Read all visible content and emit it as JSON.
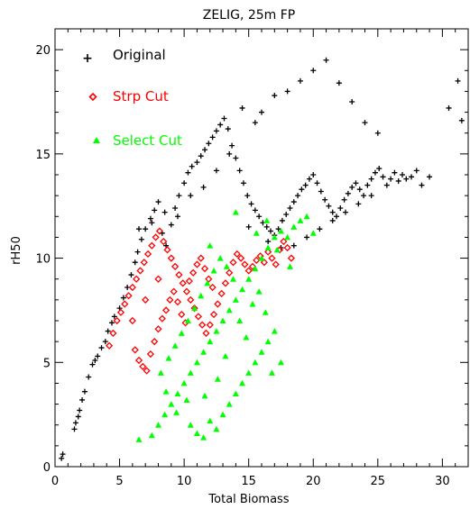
{
  "chart_data": {
    "type": "scatter",
    "title": "ZELIG, 25m FP",
    "xlabel": "Total Biomass",
    "ylabel": "rH50",
    "xlim": [
      0,
      32
    ],
    "ylim": [
      0,
      21
    ],
    "xticks": [
      0,
      5,
      10,
      15,
      20,
      25,
      30
    ],
    "yticks": [
      0,
      5,
      10,
      15,
      20
    ],
    "grid": false,
    "legend_position": "top-left",
    "series": [
      {
        "name": "Original",
        "marker": "plus",
        "color": "#000000",
        "points": [
          [
            0.5,
            0.4
          ],
          [
            0.6,
            0.6
          ],
          [
            1.5,
            1.8
          ],
          [
            1.6,
            2.1
          ],
          [
            1.8,
            2.4
          ],
          [
            1.9,
            2.7
          ],
          [
            2.1,
            3.2
          ],
          [
            2.3,
            3.6
          ],
          [
            2.6,
            4.3
          ],
          [
            2.9,
            4.9
          ],
          [
            3.1,
            5.1
          ],
          [
            3.3,
            5.3
          ],
          [
            3.6,
            5.7
          ],
          [
            3.9,
            6.0
          ],
          [
            4.1,
            6.5
          ],
          [
            4.4,
            6.9
          ],
          [
            4.6,
            7.2
          ],
          [
            5.0,
            7.6
          ],
          [
            5.3,
            8.1
          ],
          [
            5.6,
            8.6
          ],
          [
            5.9,
            9.2
          ],
          [
            6.2,
            9.8
          ],
          [
            6.4,
            10.3
          ],
          [
            6.7,
            10.9
          ],
          [
            7.0,
            11.4
          ],
          [
            7.4,
            11.9
          ],
          [
            7.7,
            12.3
          ],
          [
            8.0,
            12.7
          ],
          [
            8.3,
            11.2
          ],
          [
            8.6,
            10.6
          ],
          [
            9.0,
            11.6
          ],
          [
            9.3,
            12.4
          ],
          [
            9.6,
            13.0
          ],
          [
            10.0,
            13.6
          ],
          [
            10.3,
            14.1
          ],
          [
            10.6,
            14.4
          ],
          [
            11.0,
            14.6
          ],
          [
            11.3,
            14.9
          ],
          [
            11.6,
            15.2
          ],
          [
            11.9,
            15.5
          ],
          [
            12.2,
            15.8
          ],
          [
            12.5,
            16.1
          ],
          [
            12.8,
            16.4
          ],
          [
            13.1,
            16.7
          ],
          [
            13.4,
            16.2
          ],
          [
            13.7,
            15.4
          ],
          [
            14.0,
            14.8
          ],
          [
            14.3,
            14.2
          ],
          [
            14.6,
            13.6
          ],
          [
            14.9,
            13.0
          ],
          [
            15.2,
            12.6
          ],
          [
            15.5,
            12.3
          ],
          [
            15.8,
            12.0
          ],
          [
            16.1,
            11.7
          ],
          [
            16.4,
            11.5
          ],
          [
            16.7,
            11.3
          ],
          [
            17.0,
            11.1
          ],
          [
            17.3,
            11.4
          ],
          [
            17.6,
            11.8
          ],
          [
            17.9,
            12.1
          ],
          [
            18.2,
            12.4
          ],
          [
            18.5,
            12.7
          ],
          [
            18.8,
            13.0
          ],
          [
            19.1,
            13.3
          ],
          [
            19.4,
            13.5
          ],
          [
            19.7,
            13.8
          ],
          [
            20.0,
            14.0
          ],
          [
            20.3,
            13.6
          ],
          [
            20.6,
            13.2
          ],
          [
            20.9,
            12.8
          ],
          [
            21.2,
            12.5
          ],
          [
            21.5,
            12.2
          ],
          [
            21.8,
            12.0
          ],
          [
            22.1,
            12.4
          ],
          [
            22.4,
            12.8
          ],
          [
            22.7,
            13.1
          ],
          [
            23.0,
            13.4
          ],
          [
            23.3,
            13.6
          ],
          [
            23.6,
            13.3
          ],
          [
            23.9,
            13.0
          ],
          [
            24.2,
            13.5
          ],
          [
            24.5,
            13.8
          ],
          [
            24.8,
            14.1
          ],
          [
            25.1,
            14.3
          ],
          [
            25.4,
            13.9
          ],
          [
            25.7,
            13.5
          ],
          [
            26.0,
            13.8
          ],
          [
            26.3,
            14.1
          ],
          [
            26.6,
            13.7
          ],
          [
            26.9,
            14.0
          ],
          [
            27.2,
            13.8
          ],
          [
            27.6,
            13.9
          ],
          [
            28.0,
            14.2
          ],
          [
            28.4,
            13.5
          ],
          [
            29.0,
            13.9
          ],
          [
            30.5,
            17.2
          ],
          [
            31.2,
            18.5
          ],
          [
            31.5,
            16.6
          ],
          [
            16.0,
            17.0
          ],
          [
            17.0,
            17.8
          ],
          [
            18.0,
            18.0
          ],
          [
            19.0,
            18.5
          ],
          [
            20.0,
            19.0
          ],
          [
            21.0,
            19.5
          ],
          [
            22.0,
            18.4
          ],
          [
            23.0,
            17.5
          ],
          [
            24.0,
            16.5
          ],
          [
            25.0,
            16.0
          ],
          [
            15.5,
            16.5
          ],
          [
            14.5,
            17.2
          ],
          [
            13.5,
            15.0
          ],
          [
            12.5,
            14.2
          ],
          [
            11.5,
            13.4
          ],
          [
            10.5,
            13.0
          ],
          [
            9.5,
            12.0
          ],
          [
            8.5,
            12.2
          ],
          [
            7.5,
            11.7
          ],
          [
            6.5,
            11.4
          ],
          [
            18.5,
            10.6
          ],
          [
            19.5,
            11.0
          ],
          [
            20.5,
            11.4
          ],
          [
            21.5,
            11.8
          ],
          [
            22.5,
            12.2
          ],
          [
            23.5,
            12.6
          ],
          [
            24.5,
            13.0
          ],
          [
            16.5,
            10.8
          ],
          [
            17.5,
            10.5
          ],
          [
            15.0,
            11.5
          ]
        ]
      },
      {
        "name": "Strp Cut",
        "marker": "diamond",
        "color": "#ff0000",
        "points": [
          [
            4.2,
            5.8
          ],
          [
            4.5,
            6.4
          ],
          [
            4.8,
            7.0
          ],
          [
            5.1,
            7.4
          ],
          [
            5.4,
            7.8
          ],
          [
            5.7,
            8.2
          ],
          [
            6.0,
            8.6
          ],
          [
            6.3,
            9.0
          ],
          [
            6.6,
            9.4
          ],
          [
            6.9,
            9.8
          ],
          [
            7.2,
            10.2
          ],
          [
            7.5,
            10.6
          ],
          [
            7.8,
            11.0
          ],
          [
            8.1,
            11.3
          ],
          [
            8.4,
            10.8
          ],
          [
            8.7,
            10.4
          ],
          [
            9.0,
            10.0
          ],
          [
            9.3,
            9.6
          ],
          [
            9.6,
            9.2
          ],
          [
            9.9,
            8.8
          ],
          [
            10.2,
            8.4
          ],
          [
            10.5,
            8.0
          ],
          [
            10.8,
            7.6
          ],
          [
            11.1,
            7.2
          ],
          [
            11.4,
            6.8
          ],
          [
            11.7,
            6.4
          ],
          [
            12.0,
            6.8
          ],
          [
            12.3,
            7.3
          ],
          [
            12.6,
            7.8
          ],
          [
            12.9,
            8.3
          ],
          [
            13.2,
            8.8
          ],
          [
            13.5,
            9.3
          ],
          [
            13.8,
            9.8
          ],
          [
            14.1,
            10.2
          ],
          [
            14.4,
            10.0
          ],
          [
            14.7,
            9.7
          ],
          [
            15.0,
            9.4
          ],
          [
            15.3,
            9.6
          ],
          [
            15.6,
            9.9
          ],
          [
            15.9,
            10.1
          ],
          [
            16.2,
            9.8
          ],
          [
            16.5,
            10.3
          ],
          [
            16.8,
            10.0
          ],
          [
            17.1,
            9.7
          ],
          [
            17.4,
            10.4
          ],
          [
            17.7,
            10.8
          ],
          [
            18.0,
            10.5
          ],
          [
            18.3,
            10.0
          ],
          [
            6.2,
            5.6
          ],
          [
            6.5,
            5.1
          ],
          [
            6.8,
            4.8
          ],
          [
            7.1,
            4.6
          ],
          [
            7.4,
            5.4
          ],
          [
            7.7,
            6.0
          ],
          [
            8.0,
            6.6
          ],
          [
            8.3,
            7.1
          ],
          [
            8.6,
            7.5
          ],
          [
            8.9,
            8.0
          ],
          [
            9.2,
            8.4
          ],
          [
            9.5,
            7.9
          ],
          [
            9.8,
            7.3
          ],
          [
            10.1,
            6.9
          ],
          [
            10.4,
            8.9
          ],
          [
            10.7,
            9.3
          ],
          [
            11.0,
            9.7
          ],
          [
            11.3,
            10.0
          ],
          [
            11.6,
            9.5
          ],
          [
            11.9,
            9.0
          ],
          [
            12.2,
            8.6
          ],
          [
            8.0,
            9.0
          ],
          [
            7.0,
            8.0
          ],
          [
            6.0,
            7.0
          ]
        ]
      },
      {
        "name": "Select Cut",
        "marker": "triangle",
        "color": "#00ff00",
        "points": [
          [
            6.5,
            1.3
          ],
          [
            7.5,
            1.5
          ],
          [
            8.0,
            2.0
          ],
          [
            8.5,
            2.5
          ],
          [
            9.0,
            3.0
          ],
          [
            9.5,
            3.5
          ],
          [
            10.0,
            4.0
          ],
          [
            10.5,
            4.5
          ],
          [
            11.0,
            5.0
          ],
          [
            11.5,
            5.5
          ],
          [
            12.0,
            6.0
          ],
          [
            12.5,
            6.5
          ],
          [
            13.0,
            7.0
          ],
          [
            13.5,
            7.5
          ],
          [
            14.0,
            8.0
          ],
          [
            14.5,
            8.5
          ],
          [
            15.0,
            9.0
          ],
          [
            15.5,
            9.5
          ],
          [
            16.0,
            10.0
          ],
          [
            16.5,
            10.5
          ],
          [
            17.0,
            11.0
          ],
          [
            17.5,
            11.3
          ],
          [
            18.0,
            11.0
          ],
          [
            18.5,
            11.5
          ],
          [
            19.0,
            11.8
          ],
          [
            19.5,
            12.0
          ],
          [
            20.0,
            11.2
          ],
          [
            10.5,
            2.0
          ],
          [
            11.0,
            1.6
          ],
          [
            11.5,
            1.4
          ],
          [
            12.0,
            2.2
          ],
          [
            12.5,
            1.8
          ],
          [
            13.0,
            2.5
          ],
          [
            13.5,
            3.0
          ],
          [
            14.0,
            3.5
          ],
          [
            14.5,
            4.0
          ],
          [
            15.0,
            4.5
          ],
          [
            15.5,
            5.0
          ],
          [
            16.0,
            5.5
          ],
          [
            16.5,
            6.0
          ],
          [
            17.0,
            6.5
          ],
          [
            17.5,
            5.0
          ],
          [
            16.8,
            4.5
          ],
          [
            8.2,
            4.5
          ],
          [
            8.8,
            5.2
          ],
          [
            9.3,
            5.8
          ],
          [
            9.8,
            6.4
          ],
          [
            10.3,
            7.0
          ],
          [
            10.8,
            7.6
          ],
          [
            11.3,
            8.2
          ],
          [
            11.8,
            8.8
          ],
          [
            12.3,
            9.4
          ],
          [
            12.8,
            10.0
          ],
          [
            13.3,
            9.6
          ],
          [
            13.8,
            9.0
          ],
          [
            14.3,
            7.0
          ],
          [
            14.8,
            6.2
          ],
          [
            15.3,
            7.8
          ],
          [
            15.8,
            8.4
          ],
          [
            16.3,
            7.4
          ],
          [
            12.6,
            4.2
          ],
          [
            13.2,
            5.3
          ],
          [
            11.6,
            3.4
          ],
          [
            10.2,
            3.2
          ],
          [
            9.4,
            2.6
          ],
          [
            8.6,
            3.6
          ],
          [
            15.6,
            11.2
          ],
          [
            16.4,
            11.8
          ],
          [
            17.2,
            10.4
          ],
          [
            18.2,
            9.6
          ],
          [
            14.0,
            12.2
          ],
          [
            12.0,
            10.6
          ]
        ]
      }
    ]
  }
}
